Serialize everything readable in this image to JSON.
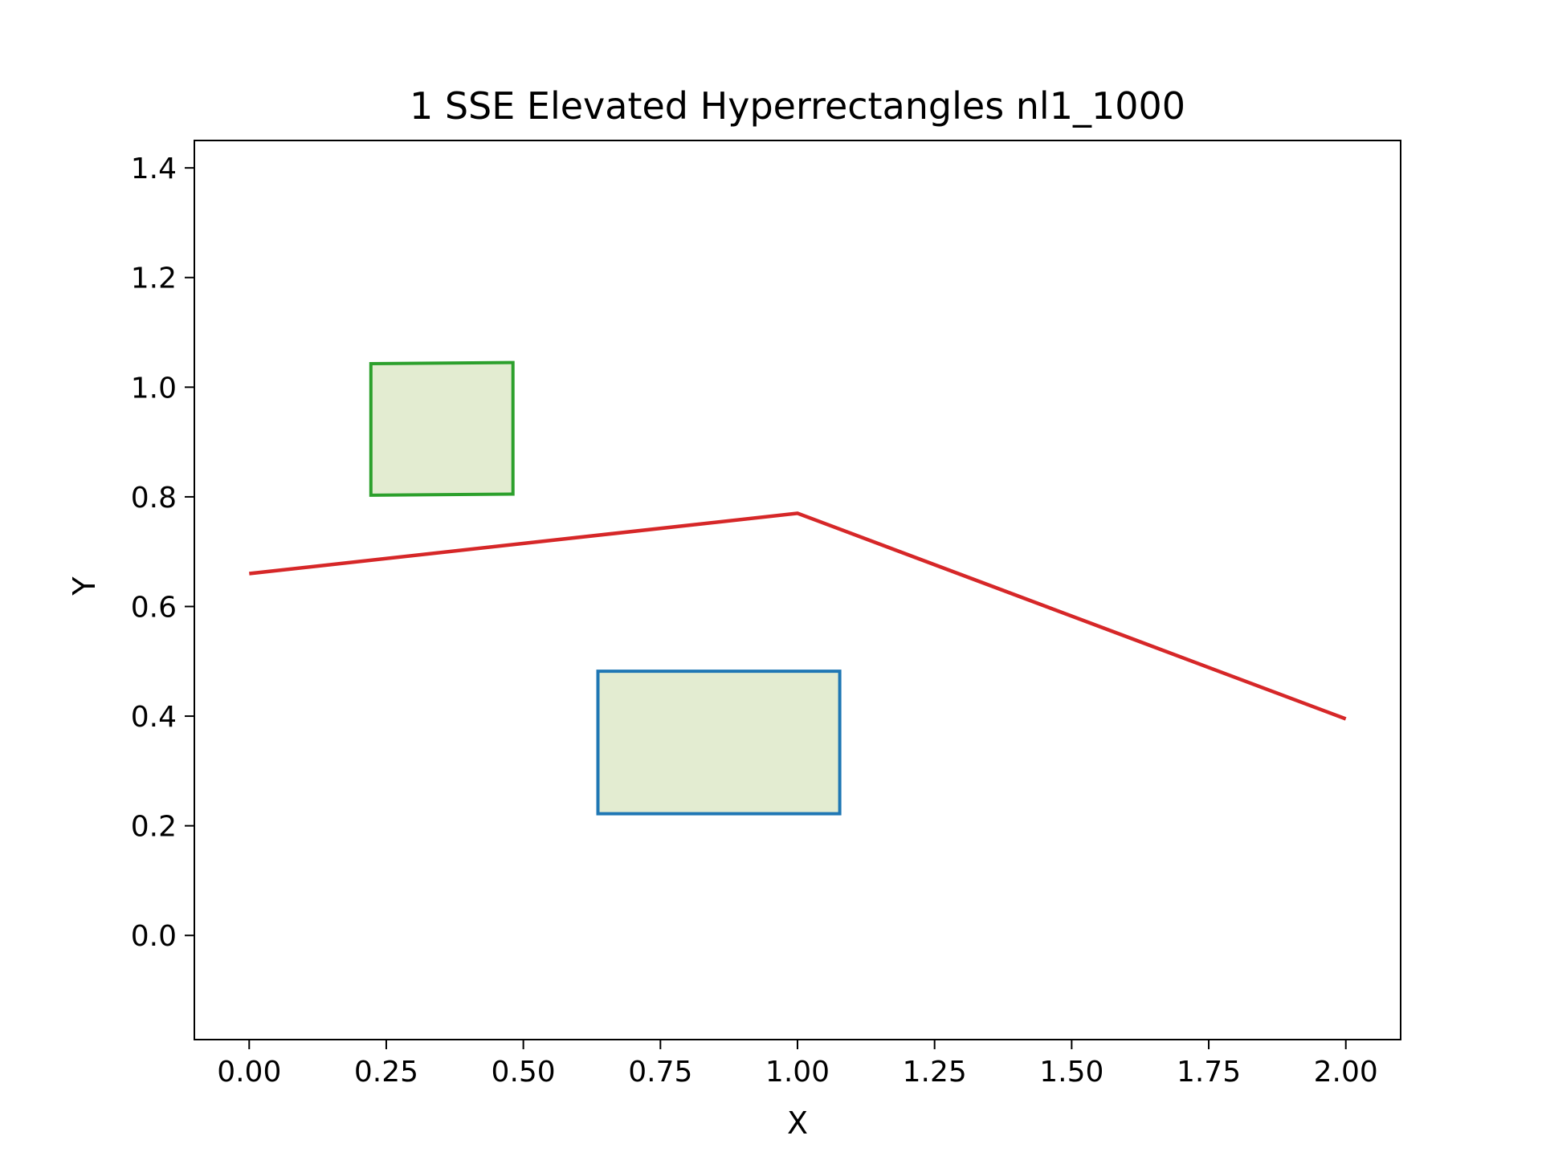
{
  "chart_data": {
    "type": "line",
    "title": "1 SSE Elevated Hyperrectangles nl1_1000",
    "xlabel": "X",
    "ylabel": "Y",
    "xlim": [
      -0.1,
      2.1
    ],
    "ylim": [
      -0.19,
      1.45
    ],
    "x_ticks": [
      "0.00",
      "0.25",
      "0.50",
      "0.75",
      "1.00",
      "1.25",
      "1.50",
      "1.75",
      "2.00"
    ],
    "y_ticks": [
      "0.0",
      "0.2",
      "0.4",
      "0.6",
      "0.8",
      "1.0",
      "1.2",
      "1.4"
    ],
    "grid": false,
    "series": [
      {
        "type": "line",
        "color": "#d62728",
        "x": [
          0.0,
          1.0,
          2.0
        ],
        "y": [
          0.66,
          0.77,
          0.395
        ]
      }
    ],
    "rectangles": [
      {
        "edge_color": "#2ca02c",
        "fill_color": "#e3ecd1",
        "corners": [
          [
            0.222,
            0.803
          ],
          [
            0.481,
            0.805
          ],
          [
            0.481,
            1.045
          ],
          [
            0.222,
            1.043
          ]
        ]
      },
      {
        "edge_color": "#1f77b4",
        "fill_color": "#e3ecd1",
        "corners": [
          [
            0.636,
            0.222
          ],
          [
            1.077,
            0.222
          ],
          [
            1.077,
            0.482
          ],
          [
            0.636,
            0.482
          ]
        ]
      }
    ]
  }
}
